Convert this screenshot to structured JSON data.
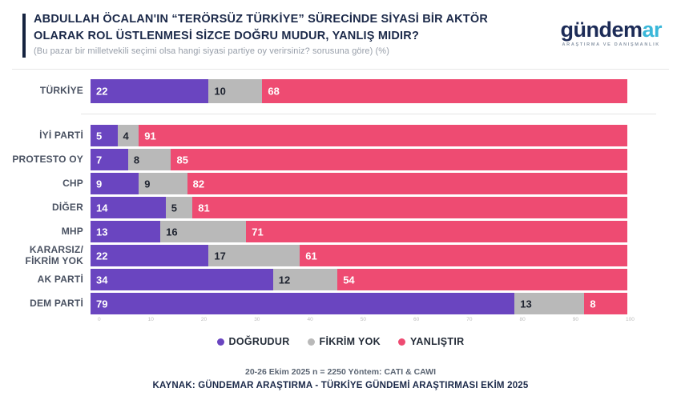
{
  "header": {
    "title": "ABDULLAH ÖCALAN'IN “TERÖRSÜZ TÜRKİYE” SÜRECİNDE SİYASİ BİR AKTÖR\nOLARAK ROL ÜSTLENMESİ SİZCE DOĞRU MUDUR, YANLIŞ MIDIR?",
    "subtitle": "(Bu pazar bir milletvekili seçimi olsa hangi siyasi partiye oy verirsiniz? sorusuna göre) (%)"
  },
  "logo": {
    "word_primary": "gündem",
    "word_accent": "ar",
    "tagline": "ARAŞTIRMA VE DANIŞMANLIK"
  },
  "chart_data": {
    "type": "bar",
    "orientation": "horizontal",
    "stacked": true,
    "categories": [
      "TÜRKİYE",
      "İYİ PARTİ",
      "PROTESTO OY",
      "CHP",
      "DİĞER",
      "MHP",
      "KARARSIZ/\nFİKRİM YOK",
      "AK PARTİ",
      "DEM PARTİ"
    ],
    "series": [
      {
        "name": "DOĞRUDUR",
        "color": "#6a45c0",
        "values": [
          22,
          5,
          7,
          9,
          14,
          13,
          22,
          34,
          79
        ]
      },
      {
        "name": "FİKRİM YOK",
        "color": "#b9b9b9",
        "values": [
          10,
          4,
          8,
          9,
          5,
          16,
          17,
          12,
          13
        ]
      },
      {
        "name": "YANLIŞTIR",
        "color": "#ee4b72",
        "values": [
          68,
          91,
          85,
          82,
          81,
          71,
          61,
          54,
          8
        ]
      }
    ],
    "xlim": [
      0,
      100
    ],
    "x_ticks": [
      "0",
      "10",
      "20",
      "30",
      "40",
      "50",
      "60",
      "70",
      "80",
      "90",
      "100"
    ],
    "grid": false,
    "legend_position": "bottom",
    "value_labels": "inside-start"
  },
  "footer": {
    "methodology": "20-26 Ekim 2025 n = 2250 Yöntem: CATI & CAWI",
    "source": "KAYNAK: GÜNDEMAR ARAŞTIRMA - TÜRKİYE GÜNDEMİ ARAŞTIRMASI EKİM 2025"
  },
  "colors": {
    "accent_bar": "#15233f",
    "title": "#1b2949",
    "logo_primary": "#1c2b57",
    "logo_accent": "#3ab7d9",
    "dogrudur": "#6a45c0",
    "fikrim_yok": "#b9b9b9",
    "yanlistir": "#ee4b72"
  }
}
